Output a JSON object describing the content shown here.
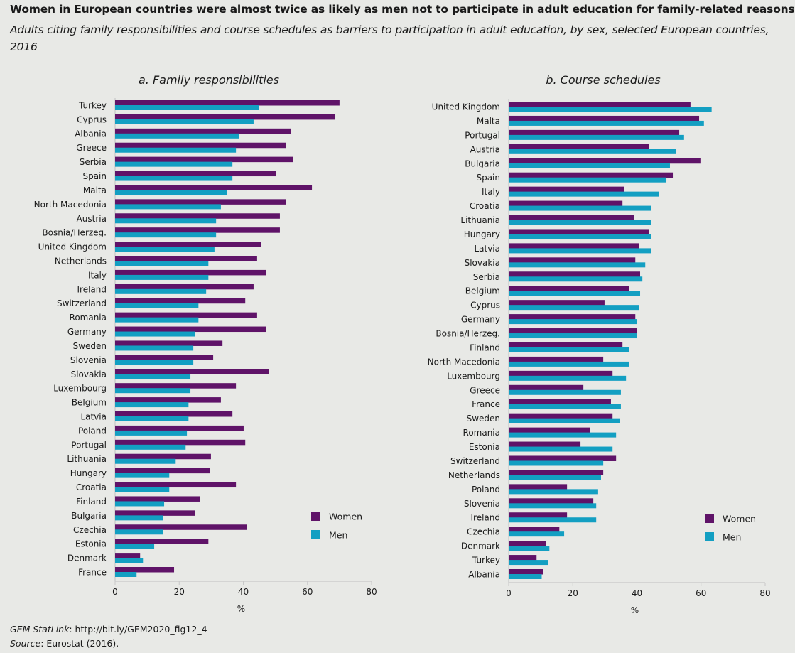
{
  "title": "Women in European countries were almost twice as likely as men not to participate in adult education for family-related reasons",
  "subtitle": "Adults citing family responsibilities and course schedules as barriers to participation in adult education, by sex, selected European countries, 2016",
  "footer": {
    "statlink_label": "GEM StatLink",
    "statlink_url": ": http://bit.ly/GEM2020_fig12_4",
    "source_label": "Source",
    "source_text": ": Eurostat (2016)."
  },
  "colors": {
    "women": "#5f1368",
    "men": "#139fc2",
    "background": "#e8e9e6"
  },
  "chart_data": [
    {
      "type": "bar",
      "orientation": "horizontal",
      "title": "a. Family responsibilities",
      "xlabel": "%",
      "xlim": [
        0,
        80
      ],
      "xticks": [
        0,
        20,
        40,
        60,
        80
      ],
      "grid": false,
      "legend_position": "bottom-right",
      "categories": [
        "Turkey",
        "Cyprus",
        "Albania",
        "Greece",
        "Serbia",
        "Spain",
        "Malta",
        "North Macedonia",
        "Austria",
        "Bosnia/Herzeg.",
        "United Kingdom",
        "Netherlands",
        "Italy",
        "Ireland",
        "Switzerland",
        "Romania",
        "Germany",
        "Sweden",
        "Slovenia",
        "Slovakia",
        "Luxembourg",
        "Belgium",
        "Latvia",
        "Poland",
        "Portugal",
        "Lithuania",
        "Hungary",
        "Croatia",
        "Finland",
        "Bulgaria",
        "Czechia",
        "Estonia",
        "Denmark",
        "France"
      ],
      "series": [
        {
          "name": "Women",
          "values": [
            70.0,
            68.7,
            54.9,
            53.4,
            55.4,
            50.3,
            61.4,
            53.4,
            51.4,
            51.4,
            45.6,
            44.3,
            47.2,
            43.2,
            40.6,
            44.3,
            47.2,
            33.5,
            30.6,
            47.9,
            37.7,
            33.0,
            36.6,
            40.1,
            40.6,
            29.9,
            29.5,
            37.7,
            26.4,
            24.9,
            41.2,
            29.1,
            7.8,
            18.4
          ]
        },
        {
          "name": "Men",
          "values": [
            44.8,
            43.2,
            38.6,
            37.7,
            36.6,
            36.6,
            35.0,
            33.0,
            31.5,
            31.5,
            31.0,
            29.1,
            29.1,
            28.4,
            26.0,
            26.0,
            24.9,
            24.4,
            24.4,
            23.5,
            23.5,
            22.9,
            22.9,
            22.4,
            22.0,
            18.9,
            16.9,
            16.9,
            15.3,
            14.9,
            14.9,
            12.2,
            8.7,
            6.7
          ]
        }
      ]
    },
    {
      "type": "bar",
      "orientation": "horizontal",
      "title": "b. Course schedules",
      "xlabel": "%",
      "xlim": [
        0,
        80
      ],
      "xticks": [
        0,
        20,
        40,
        60,
        80
      ],
      "grid": false,
      "legend_position": "bottom-right",
      "categories": [
        "United Kingdom",
        "Malta",
        "Portugal",
        "Austria",
        "Bulgaria",
        "Spain",
        "Italy",
        "Croatia",
        "Lithuania",
        "Hungary",
        "Latvia",
        "Slovakia",
        "Serbia",
        "Belgium",
        "Cyprus",
        "Germany",
        "Bosnia/Herzeg.",
        "Finland",
        "North Macedonia",
        "Luxembourg",
        "Greece",
        "France",
        "Sweden",
        "Romania",
        "Estonia",
        "Switzerland",
        "Netherlands",
        "Poland",
        "Slovenia",
        "Ireland",
        "Czechia",
        "Denmark",
        "Turkey",
        "Albania"
      ],
      "series": [
        {
          "name": "Women",
          "values": [
            56.7,
            59.4,
            53.2,
            43.7,
            59.8,
            51.2,
            35.9,
            35.5,
            39.0,
            43.7,
            40.6,
            39.5,
            41.0,
            37.5,
            29.9,
            39.5,
            40.1,
            35.5,
            29.5,
            32.4,
            23.3,
            31.9,
            32.4,
            25.3,
            22.4,
            33.5,
            29.5,
            18.2,
            26.4,
            18.2,
            15.8,
            11.6,
            8.7,
            10.7
          ]
        },
        {
          "name": "Men",
          "values": [
            63.3,
            60.9,
            54.7,
            52.3,
            50.3,
            49.2,
            46.8,
            44.5,
            44.5,
            44.5,
            44.5,
            42.6,
            41.7,
            41.0,
            40.6,
            40.1,
            40.1,
            37.5,
            37.5,
            36.6,
            35.0,
            35.0,
            34.6,
            33.5,
            32.4,
            29.5,
            28.8,
            27.9,
            27.3,
            27.3,
            17.3,
            12.7,
            12.2,
            10.3
          ]
        }
      ]
    }
  ]
}
